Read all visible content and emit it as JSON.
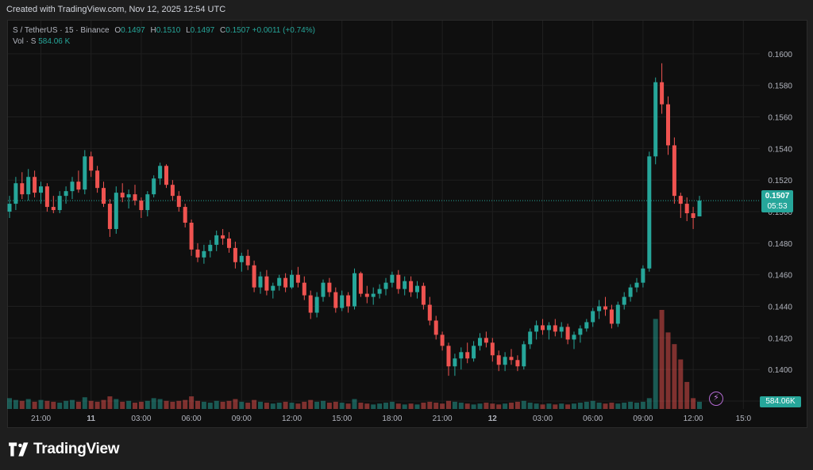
{
  "caption": "Created with TradingView.com, Nov 12, 2025 12:54 UTC",
  "legend": {
    "symbol": "S / TetherUS · 15 · Binance",
    "open_label": "O",
    "open": "0.1497",
    "high_label": "H",
    "high": "0.1510",
    "low_label": "L",
    "low": "0.1497",
    "close_label": "C",
    "close": "0.1507",
    "change": "+0.0011 (+0.74%)",
    "volume_label": "Vol · S",
    "volume": "584.06 K"
  },
  "price_tag": {
    "price": "0.1507",
    "countdown": "05:53"
  },
  "volume_tag": "584.06K",
  "brand": {
    "name": "TradingView",
    "logo_icon": "tradingview-logo-icon"
  },
  "colors": {
    "up": "#26a69a",
    "down": "#ef5350",
    "background": "#0f0f0f",
    "grid": "#1f1f1f",
    "text": "#b2b5be"
  },
  "chart_data": {
    "type": "candlestick",
    "ylim": [
      0.1375,
      0.1615
    ],
    "y_ticks": [
      "0.1600",
      "0.1580",
      "0.1560",
      "0.1540",
      "0.1520",
      "0.1500",
      "0.1480",
      "0.1460",
      "0.1440",
      "0.1420",
      "0.1400",
      "0.1380"
    ],
    "x_ticks": [
      "21:00",
      "11",
      "03:00",
      "06:00",
      "09:00",
      "12:00",
      "15:00",
      "18:00",
      "21:00",
      "12",
      "03:00",
      "06:00",
      "09:00",
      "12:00",
      "15:0"
    ],
    "candles_ohlc": [
      [
        0.15,
        0.151,
        0.1496,
        0.1505
      ],
      [
        0.1505,
        0.1522,
        0.1501,
        0.1518
      ],
      [
        0.1518,
        0.1525,
        0.1508,
        0.1511
      ],
      [
        0.1511,
        0.1527,
        0.1507,
        0.1522
      ],
      [
        0.1522,
        0.1526,
        0.1509,
        0.1512
      ],
      [
        0.1512,
        0.1519,
        0.1505,
        0.1516
      ],
      [
        0.1516,
        0.1518,
        0.15,
        0.1503
      ],
      [
        0.1503,
        0.151,
        0.1499,
        0.1501
      ],
      [
        0.1501,
        0.1513,
        0.1499,
        0.151
      ],
      [
        0.151,
        0.1516,
        0.1505,
        0.1513
      ],
      [
        0.1513,
        0.1522,
        0.1508,
        0.1519
      ],
      [
        0.1519,
        0.1526,
        0.1512,
        0.1514
      ],
      [
        0.1514,
        0.1539,
        0.1511,
        0.1535
      ],
      [
        0.1535,
        0.1538,
        0.1522,
        0.1526
      ],
      [
        0.1526,
        0.1529,
        0.1512,
        0.1515
      ],
      [
        0.1515,
        0.1519,
        0.1503,
        0.1505
      ],
      [
        0.1505,
        0.1508,
        0.1484,
        0.1489
      ],
      [
        0.1489,
        0.1516,
        0.1486,
        0.1512
      ],
      [
        0.1512,
        0.1518,
        0.1506,
        0.1509
      ],
      [
        0.1509,
        0.1514,
        0.1502,
        0.1511
      ],
      [
        0.1511,
        0.1517,
        0.1504,
        0.1507
      ],
      [
        0.1507,
        0.1509,
        0.1496,
        0.1501
      ],
      [
        0.1501,
        0.1513,
        0.1497,
        0.1511
      ],
      [
        0.1511,
        0.1523,
        0.1509,
        0.1521
      ],
      [
        0.1521,
        0.1531,
        0.1517,
        0.1529
      ],
      [
        0.1529,
        0.153,
        0.1515,
        0.1517
      ],
      [
        0.1517,
        0.152,
        0.1507,
        0.151
      ],
      [
        0.151,
        0.1513,
        0.15,
        0.1503
      ],
      [
        0.1503,
        0.1505,
        0.149,
        0.1493
      ],
      [
        0.1493,
        0.1495,
        0.1472,
        0.1476
      ],
      [
        0.1476,
        0.148,
        0.1468,
        0.1471
      ],
      [
        0.1471,
        0.1479,
        0.1467,
        0.1475
      ],
      [
        0.1475,
        0.1482,
        0.1471,
        0.1479
      ],
      [
        0.1479,
        0.1488,
        0.1475,
        0.1485
      ],
      [
        0.1485,
        0.1489,
        0.1479,
        0.1483
      ],
      [
        0.1483,
        0.1487,
        0.1474,
        0.1477
      ],
      [
        0.1477,
        0.1481,
        0.1464,
        0.1468
      ],
      [
        0.1468,
        0.1474,
        0.1462,
        0.1472
      ],
      [
        0.1472,
        0.1476,
        0.1463,
        0.1466
      ],
      [
        0.1466,
        0.1469,
        0.1449,
        0.1452
      ],
      [
        0.1452,
        0.1462,
        0.1448,
        0.1459
      ],
      [
        0.1459,
        0.1463,
        0.1447,
        0.145
      ],
      [
        0.145,
        0.1455,
        0.1445,
        0.1453
      ],
      [
        0.1453,
        0.146,
        0.145,
        0.1458
      ],
      [
        0.1458,
        0.1461,
        0.1449,
        0.1452
      ],
      [
        0.1452,
        0.1463,
        0.1451,
        0.146
      ],
      [
        0.146,
        0.1465,
        0.1452,
        0.1455
      ],
      [
        0.1455,
        0.1459,
        0.1444,
        0.1447
      ],
      [
        0.1447,
        0.145,
        0.1432,
        0.1436
      ],
      [
        0.1436,
        0.1449,
        0.1433,
        0.1446
      ],
      [
        0.1446,
        0.1457,
        0.1443,
        0.1455
      ],
      [
        0.1455,
        0.1458,
        0.1446,
        0.1449
      ],
      [
        0.1449,
        0.1452,
        0.1436,
        0.1439
      ],
      [
        0.1439,
        0.145,
        0.1437,
        0.1447
      ],
      [
        0.1447,
        0.1449,
        0.1436,
        0.144
      ],
      [
        0.144,
        0.1464,
        0.1438,
        0.1461
      ],
      [
        0.1461,
        0.1462,
        0.1446,
        0.1448
      ],
      [
        0.1448,
        0.1453,
        0.1442,
        0.1446
      ],
      [
        0.1446,
        0.1452,
        0.1441,
        0.1448
      ],
      [
        0.1448,
        0.1454,
        0.1445,
        0.1451
      ],
      [
        0.1451,
        0.1458,
        0.1447,
        0.1455
      ],
      [
        0.1455,
        0.1462,
        0.1452,
        0.146
      ],
      [
        0.146,
        0.1463,
        0.1448,
        0.1451
      ],
      [
        0.1451,
        0.1459,
        0.1447,
        0.1456
      ],
      [
        0.1456,
        0.1459,
        0.1446,
        0.1449
      ],
      [
        0.1449,
        0.1456,
        0.1445,
        0.1453
      ],
      [
        0.1453,
        0.1455,
        0.1438,
        0.1441
      ],
      [
        0.1441,
        0.1446,
        0.1428,
        0.1431
      ],
      [
        0.1431,
        0.1434,
        0.1419,
        0.1422
      ],
      [
        0.1422,
        0.1424,
        0.1412,
        0.1415
      ],
      [
        0.1415,
        0.1417,
        0.1396,
        0.1402
      ],
      [
        0.1402,
        0.141,
        0.1396,
        0.1407
      ],
      [
        0.1407,
        0.1414,
        0.14,
        0.1411
      ],
      [
        0.1411,
        0.1417,
        0.1404,
        0.1407
      ],
      [
        0.1407,
        0.1418,
        0.1405,
        0.1415
      ],
      [
        0.1415,
        0.1423,
        0.1412,
        0.142
      ],
      [
        0.142,
        0.1424,
        0.1414,
        0.1417
      ],
      [
        0.1417,
        0.142,
        0.1405,
        0.1409
      ],
      [
        0.1409,
        0.1412,
        0.1399,
        0.1403
      ],
      [
        0.1403,
        0.1411,
        0.1399,
        0.1408
      ],
      [
        0.1408,
        0.1413,
        0.1403,
        0.1406
      ],
      [
        0.1406,
        0.1409,
        0.1399,
        0.1402
      ],
      [
        0.1402,
        0.1418,
        0.14,
        0.1416
      ],
      [
        0.1416,
        0.1426,
        0.1413,
        0.1424
      ],
      [
        0.1424,
        0.1431,
        0.1419,
        0.1428
      ],
      [
        0.1428,
        0.1432,
        0.1422,
        0.1425
      ],
      [
        0.1425,
        0.143,
        0.1419,
        0.1428
      ],
      [
        0.1428,
        0.1432,
        0.1421,
        0.1424
      ],
      [
        0.1424,
        0.143,
        0.142,
        0.1427
      ],
      [
        0.1427,
        0.1429,
        0.1416,
        0.1419
      ],
      [
        0.1419,
        0.1424,
        0.1413,
        0.1422
      ],
      [
        0.1422,
        0.1428,
        0.1417,
        0.1426
      ],
      [
        0.1426,
        0.1432,
        0.1424,
        0.143
      ],
      [
        0.143,
        0.1439,
        0.1427,
        0.1437
      ],
      [
        0.1437,
        0.1444,
        0.1432,
        0.144
      ],
      [
        0.144,
        0.1446,
        0.1434,
        0.1438
      ],
      [
        0.1438,
        0.1441,
        0.1426,
        0.1429
      ],
      [
        0.1429,
        0.1443,
        0.1427,
        0.1441
      ],
      [
        0.1441,
        0.1449,
        0.1438,
        0.1446
      ],
      [
        0.1446,
        0.1454,
        0.1443,
        0.1452
      ],
      [
        0.1452,
        0.1458,
        0.1449,
        0.1455
      ],
      [
        0.1455,
        0.1466,
        0.1452,
        0.1464
      ],
      [
        0.1464,
        0.1538,
        0.1462,
        0.1535
      ],
      [
        0.1535,
        0.1585,
        0.153,
        0.1582
      ],
      [
        0.1582,
        0.1594,
        0.1562,
        0.1568
      ],
      [
        0.1568,
        0.1573,
        0.1536,
        0.1542
      ],
      [
        0.1542,
        0.1547,
        0.1505,
        0.151
      ],
      [
        0.151,
        0.1512,
        0.1496,
        0.1505
      ],
      [
        0.1505,
        0.1509,
        0.1494,
        0.1499
      ],
      [
        0.1499,
        0.1503,
        0.1489,
        0.1496
      ],
      [
        0.1497,
        0.151,
        0.1497,
        0.1507
      ]
    ],
    "volume": [
      12,
      10,
      9,
      11,
      8,
      10,
      9,
      8,
      7,
      9,
      10,
      8,
      13,
      9,
      8,
      10,
      14,
      11,
      8,
      9,
      7,
      8,
      9,
      12,
      11,
      9,
      8,
      9,
      10,
      14,
      9,
      8,
      7,
      9,
      8,
      9,
      11,
      8,
      7,
      10,
      8,
      7,
      6,
      7,
      8,
      7,
      6,
      8,
      10,
      8,
      9,
      7,
      8,
      7,
      6,
      11,
      7,
      6,
      5,
      6,
      7,
      8,
      6,
      5,
      6,
      5,
      7,
      8,
      7,
      6,
      9,
      8,
      7,
      6,
      5,
      6,
      7,
      6,
      5,
      6,
      7,
      8,
      9,
      7,
      6,
      5,
      6,
      5,
      6,
      5,
      6,
      7,
      8,
      9,
      7,
      6,
      7,
      6,
      7,
      8,
      7,
      8,
      12,
      100,
      110,
      85,
      72,
      55,
      30,
      12,
      8
    ]
  }
}
